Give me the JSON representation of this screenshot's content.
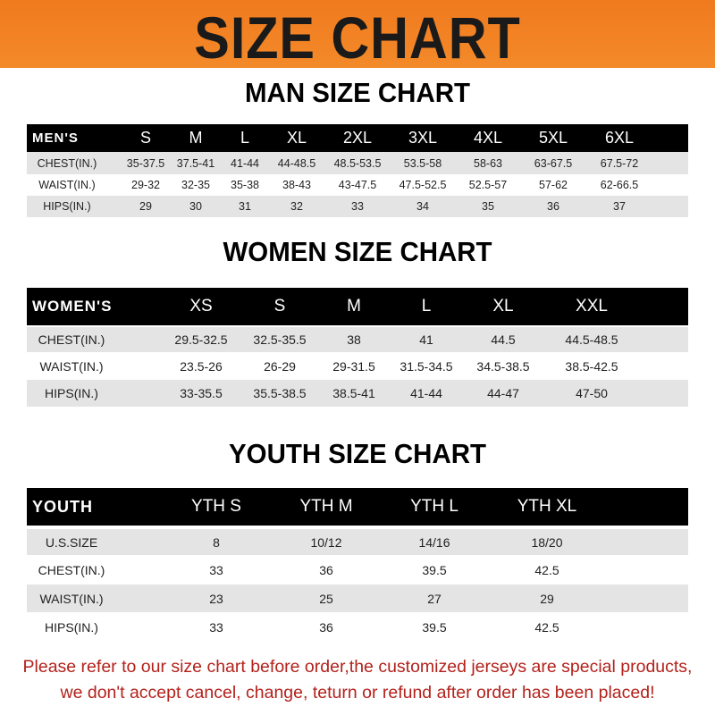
{
  "banner": {
    "title": "SIZE CHART",
    "color": "#f07a1e"
  },
  "men": {
    "title": "MAN SIZE CHART",
    "header": [
      "MEN'S",
      "S",
      "M",
      "L",
      "XL",
      "2XL",
      "3XL",
      "4XL",
      "5XL",
      "6XL"
    ],
    "rows": [
      [
        "CHEST(IN.)",
        "35-37.5",
        "37.5-41",
        "41-44",
        "44-48.5",
        "48.5-53.5",
        "53.5-58",
        "58-63",
        "63-67.5",
        "67.5-72"
      ],
      [
        "WAIST(IN.)",
        "29-32",
        "32-35",
        "35-38",
        "38-43",
        "43-47.5",
        "47.5-52.5",
        "52.5-57",
        "57-62",
        "62-66.5"
      ],
      [
        "HIPS(IN.)",
        "29",
        "30",
        "31",
        "32",
        "33",
        "34",
        "35",
        "36",
        "37"
      ]
    ]
  },
  "women": {
    "title": "WOMEN SIZE CHART",
    "header": [
      "WOMEN'S",
      "XS",
      "S",
      "M",
      "L",
      "XL",
      "XXL"
    ],
    "rows": [
      [
        "CHEST(IN.)",
        "29.5-32.5",
        "32.5-35.5",
        "38",
        "41",
        "44.5",
        "44.5-48.5"
      ],
      [
        "WAIST(IN.)",
        "23.5-26",
        "26-29",
        "29-31.5",
        "31.5-34.5",
        "34.5-38.5",
        "38.5-42.5"
      ],
      [
        "HIPS(IN.)",
        "33-35.5",
        "35.5-38.5",
        "38.5-41",
        "41-44",
        "44-47",
        "47-50"
      ]
    ]
  },
  "youth": {
    "title": "YOUTH SIZE CHART",
    "header": [
      "YOUTH",
      "YTH S",
      "YTH M",
      "YTH L",
      "YTH XL"
    ],
    "rows": [
      [
        "U.S.SIZE",
        "8",
        "10/12",
        "14/16",
        "18/20"
      ],
      [
        "CHEST(IN.)",
        "33",
        "36",
        "39.5",
        "42.5"
      ],
      [
        "WAIST(IN.)",
        "23",
        "25",
        "27",
        "29"
      ],
      [
        "HIPS(IN.)",
        "33",
        "36",
        "39.5",
        "42.5"
      ]
    ]
  },
  "footer": {
    "line1": "Please refer to our size chart before order,the customized jerseys are special products,",
    "line2": "we don't accept cancel, change, teturn or refund after order has been placed!",
    "color": "#b3221c"
  }
}
